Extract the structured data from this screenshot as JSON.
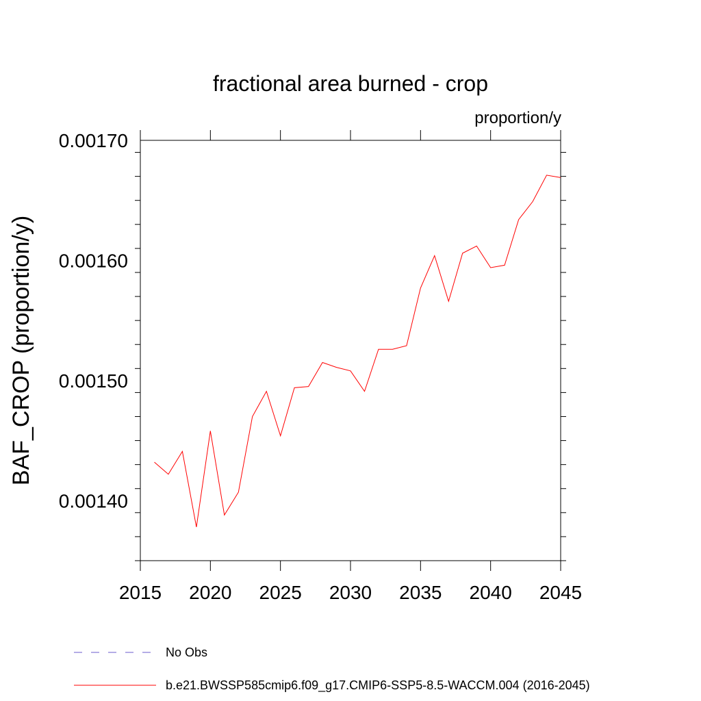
{
  "chart_data": {
    "type": "line",
    "title": "fractional area burned - crop",
    "units_label": "proportion/y",
    "ylabel": "BAF_CROP  (proportion/y)",
    "xlabel": "",
    "xlim": [
      2015,
      2045
    ],
    "ylim": [
      0.00135,
      0.0017
    ],
    "x_ticks": [
      2015,
      2020,
      2025,
      2030,
      2035,
      2040,
      2045
    ],
    "x_tick_labels": [
      "2015",
      "2020",
      "2025",
      "2030",
      "2035",
      "2040",
      "2045"
    ],
    "y_ticks": [
      0.0014,
      0.0015,
      0.0016,
      0.0017
    ],
    "y_tick_labels": [
      "0.00140",
      "0.00150",
      "0.00160",
      "0.00170"
    ],
    "grid": false,
    "legend_position": "bottom",
    "legend": [
      {
        "label": "No Obs",
        "color": "#6a5acd",
        "style": "dashed"
      },
      {
        "label": "b.e21.BWSSP585cmip6.f09_g17.CMIP6-SSP5-8.5-WACCM.004 (2016-2045)",
        "color": "#ff0000",
        "style": "solid"
      }
    ],
    "series": [
      {
        "name": "b.e21.BWSSP585cmip6.f09_g17.CMIP6-SSP5-8.5-WACCM.004 (2016-2045)",
        "color": "#ff0000",
        "x": [
          2016,
          2017,
          2018,
          2019,
          2020,
          2021,
          2022,
          2023,
          2024,
          2025,
          2026,
          2027,
          2028,
          2029,
          2030,
          2031,
          2032,
          2033,
          2034,
          2035,
          2036,
          2037,
          2038,
          2039,
          2040,
          2041,
          2042,
          2043,
          2044,
          2045
        ],
        "values": [
          0.001432,
          0.001422,
          0.001441,
          0.001378,
          0.001458,
          0.001388,
          0.001407,
          0.00147,
          0.001491,
          0.001454,
          0.001494,
          0.001495,
          0.001515,
          0.001511,
          0.001508,
          0.001491,
          0.001526,
          0.001526,
          0.001529,
          0.001577,
          0.001604,
          0.001566,
          0.001606,
          0.001612,
          0.001594,
          0.001596,
          0.001634,
          0.001649,
          0.001671,
          0.001669
        ]
      }
    ]
  }
}
